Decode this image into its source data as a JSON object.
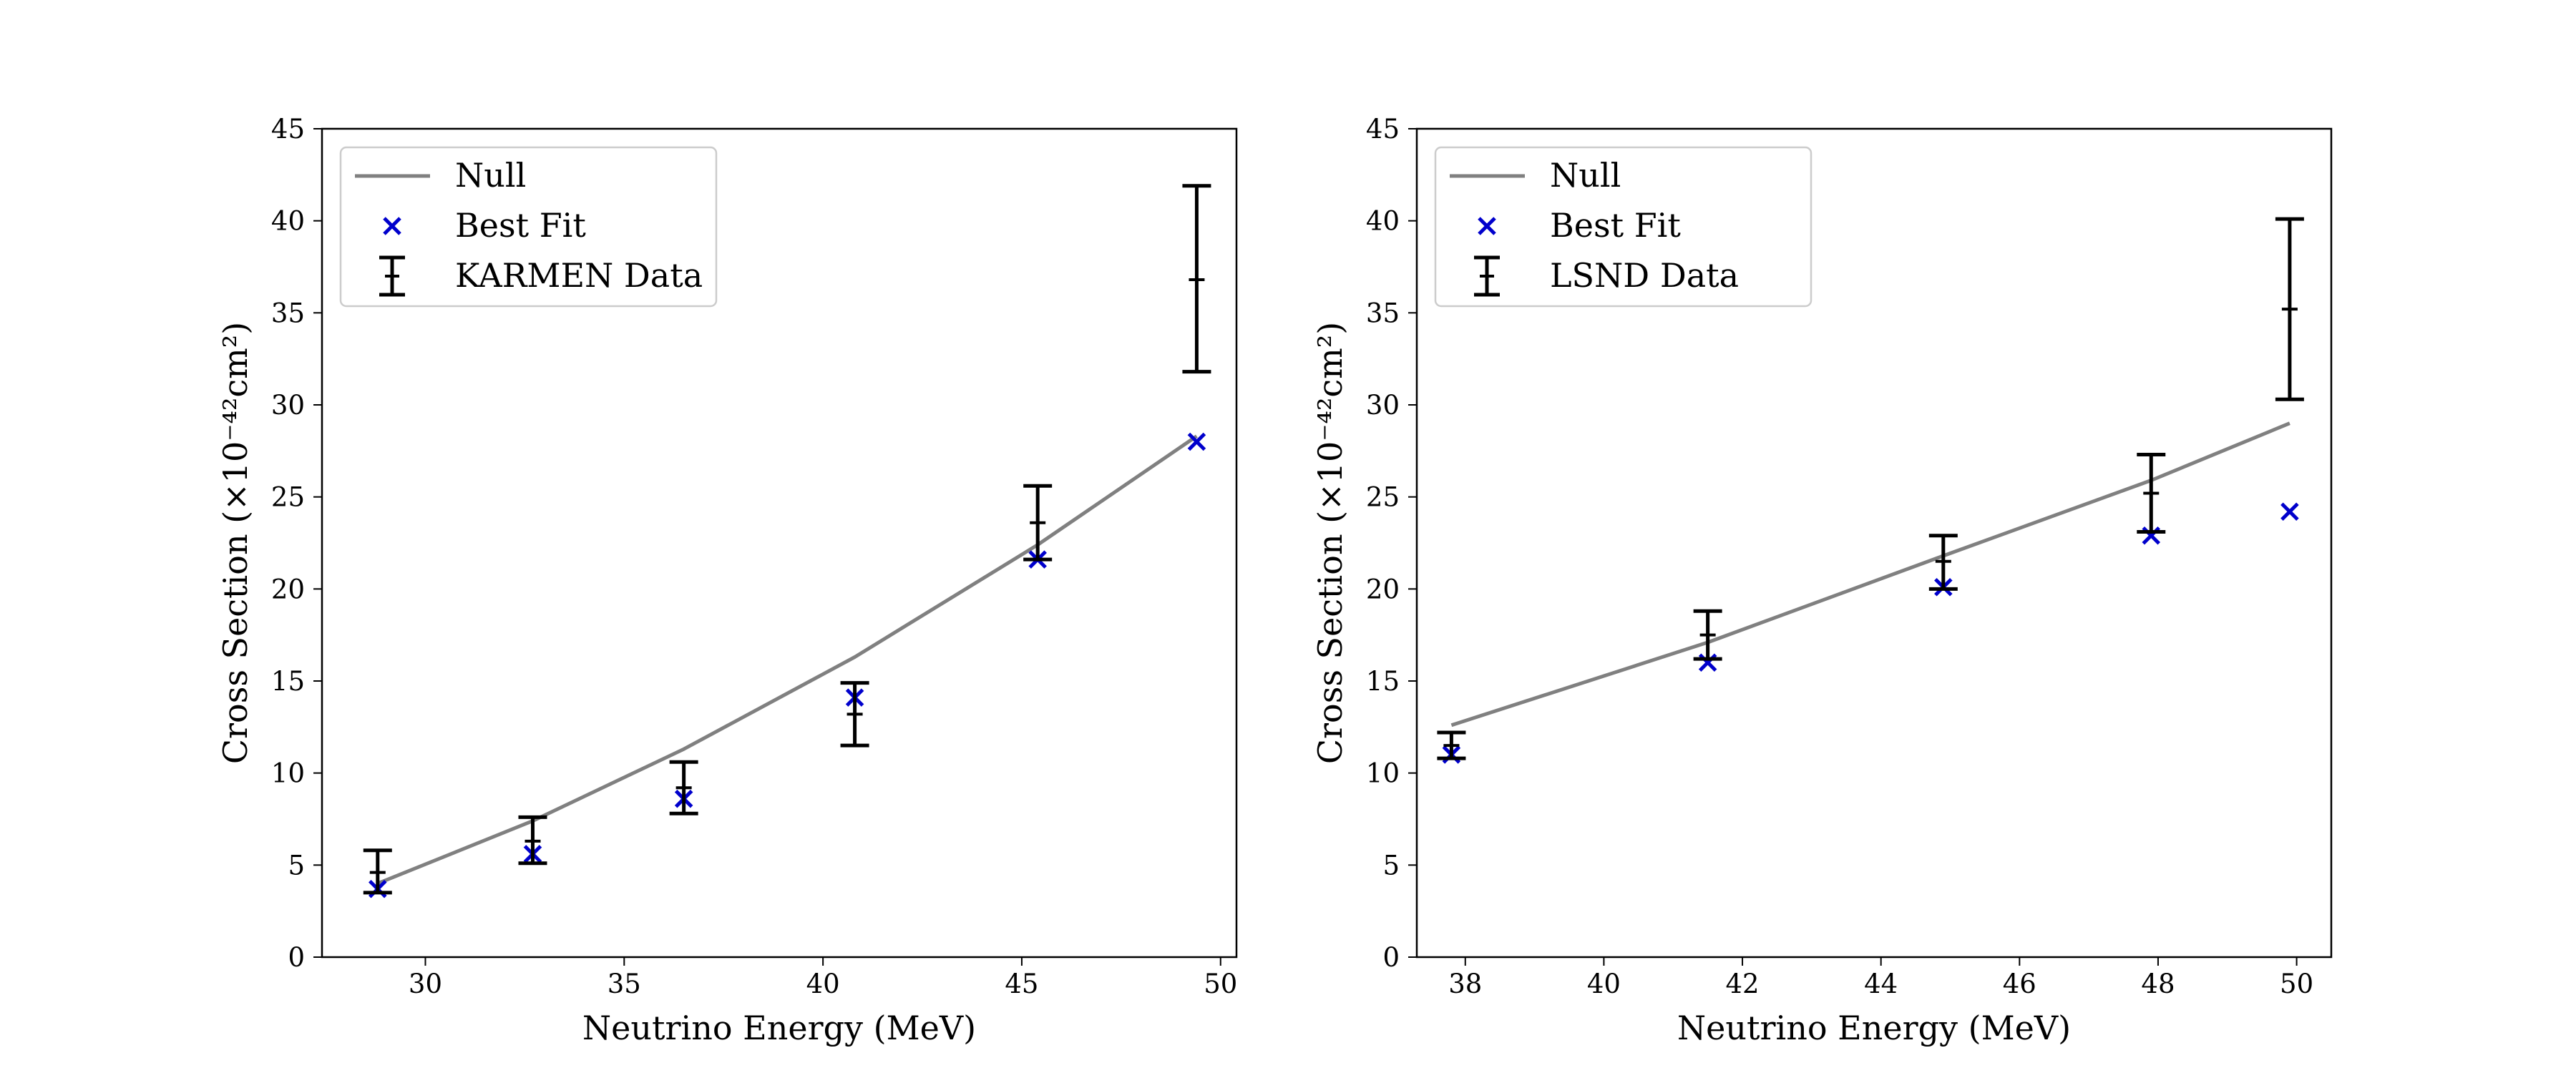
{
  "chart_data": [
    {
      "type": "scatter",
      "title": "",
      "xlabel": "Neutrino Energy (MeV)",
      "ylabel": "Cross Section (×10⁻⁴²cm²)",
      "xlim": [
        27.4,
        50.4
      ],
      "ylim": [
        0,
        45
      ],
      "xticks": [
        30,
        35,
        40,
        45,
        50
      ],
      "yticks": [
        0,
        5,
        10,
        15,
        20,
        25,
        30,
        35,
        40,
        45
      ],
      "grid": false,
      "legend_position": "top-left",
      "series": [
        {
          "name": "Null",
          "kind": "line",
          "color": "#808080",
          "x": [
            28.8,
            32.7,
            36.5,
            40.8,
            45.4,
            49.4
          ],
          "y": [
            4.0,
            7.4,
            11.3,
            16.3,
            22.4,
            28.3
          ]
        },
        {
          "name": "Best Fit",
          "kind": "marker",
          "color": "#0000cc",
          "x": [
            28.8,
            32.7,
            36.5,
            40.8,
            45.4,
            49.4
          ],
          "y": [
            3.7,
            5.6,
            8.6,
            14.1,
            21.6,
            28.0
          ]
        },
        {
          "name": "KARMEN Data",
          "kind": "errorbar",
          "color": "#000000",
          "x": [
            28.8,
            32.7,
            36.5,
            40.8,
            45.4,
            49.4
          ],
          "y": [
            4.6,
            6.3,
            9.2,
            13.2,
            23.6,
            36.8
          ],
          "yerr_low": [
            1.1,
            1.2,
            1.4,
            1.7,
            2.0,
            5.0
          ],
          "yerr_high": [
            1.2,
            1.3,
            1.4,
            1.7,
            2.0,
            5.1
          ]
        }
      ]
    },
    {
      "type": "scatter",
      "title": "",
      "xlabel": "Neutrino Energy (MeV)",
      "ylabel": "Cross Section (×10⁻⁴²cm²)",
      "xlim": [
        37.3,
        50.5
      ],
      "ylim": [
        0,
        45
      ],
      "xticks": [
        38,
        40,
        42,
        44,
        46,
        48,
        50
      ],
      "yticks": [
        0,
        5,
        10,
        15,
        20,
        25,
        30,
        35,
        40,
        45
      ],
      "grid": false,
      "legend_position": "top-left",
      "series": [
        {
          "name": "Null",
          "kind": "line",
          "color": "#808080",
          "x": [
            37.8,
            41.5,
            44.9,
            47.9,
            49.9
          ],
          "y": [
            12.6,
            17.1,
            21.8,
            25.9,
            29.0
          ]
        },
        {
          "name": "Best Fit",
          "kind": "marker",
          "color": "#0000cc",
          "x": [
            37.8,
            41.5,
            44.9,
            47.9,
            49.9
          ],
          "y": [
            11.0,
            16.0,
            20.1,
            22.9,
            24.2
          ]
        },
        {
          "name": "LSND Data",
          "kind": "errorbar",
          "color": "#000000",
          "x": [
            37.8,
            41.5,
            44.9,
            47.9,
            49.9
          ],
          "y": [
            11.5,
            17.5,
            21.5,
            25.2,
            35.2
          ],
          "yerr_low": [
            0.7,
            1.3,
            1.5,
            2.1,
            4.9
          ],
          "yerr_high": [
            0.7,
            1.3,
            1.4,
            2.1,
            4.9
          ]
        }
      ]
    }
  ]
}
